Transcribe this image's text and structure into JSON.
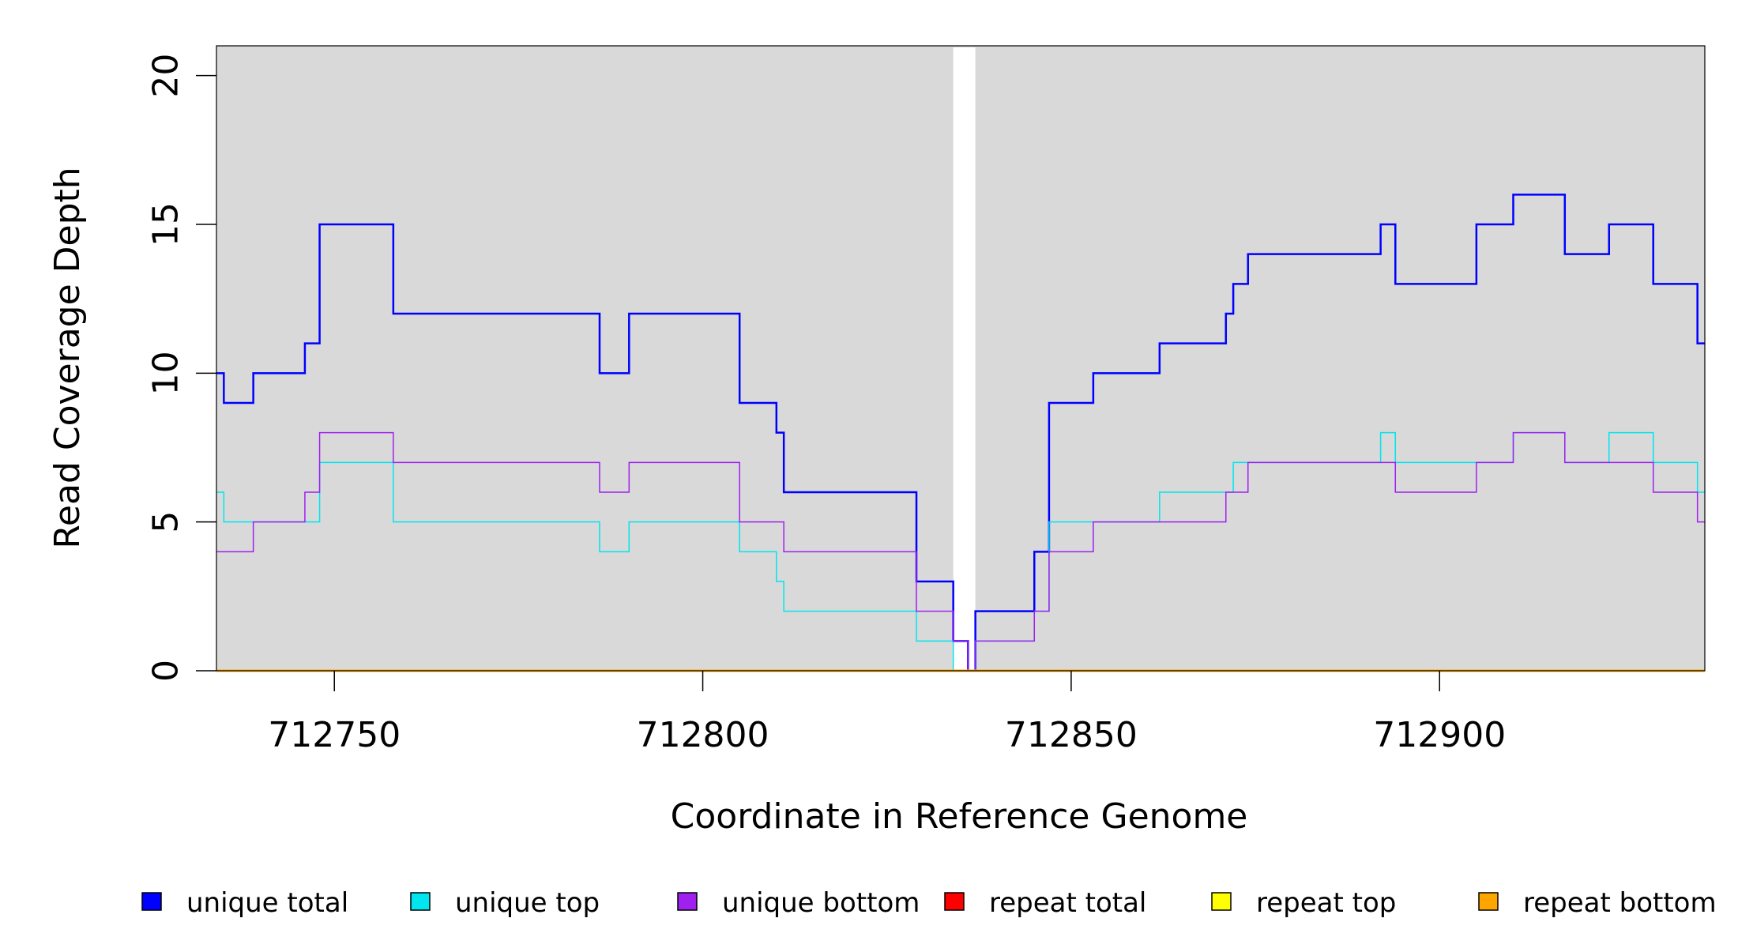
{
  "chart_data": {
    "type": "line",
    "step": true,
    "xlabel": "Coordinate in Reference Genome",
    "ylabel": "Read Coverage Depth",
    "xlim": [
      712734,
      712936
    ],
    "ylim": [
      0,
      21
    ],
    "xticks": [
      712750,
      712800,
      712850,
      712900
    ],
    "yticks": [
      0,
      5,
      10,
      15,
      20
    ],
    "background": "#d9d9d9",
    "gap": [
      712834,
      712837
    ],
    "legend_position": "bottom",
    "series": [
      {
        "name": "unique total",
        "color": "#0000ff",
        "line_width": 2.5,
        "steps": [
          [
            712734,
            10
          ],
          [
            712735,
            9
          ],
          [
            712739,
            10
          ],
          [
            712746,
            11
          ],
          [
            712748,
            15
          ],
          [
            712758,
            12
          ],
          [
            712786,
            10
          ],
          [
            712790,
            12
          ],
          [
            712805,
            9
          ],
          [
            712810,
            8
          ],
          [
            712811,
            6
          ],
          [
            712829,
            3
          ],
          [
            712834,
            1
          ],
          [
            712836,
            0
          ],
          [
            712837,
            2
          ],
          [
            712845,
            4
          ],
          [
            712847,
            9
          ],
          [
            712853,
            10
          ],
          [
            712862,
            11
          ],
          [
            712871,
            12
          ],
          [
            712872,
            13
          ],
          [
            712874,
            14
          ],
          [
            712892,
            15
          ],
          [
            712894,
            13
          ],
          [
            712905,
            15
          ],
          [
            712910,
            16
          ],
          [
            712917,
            14
          ],
          [
            712923,
            15
          ],
          [
            712929,
            13
          ],
          [
            712935,
            11
          ],
          [
            712936,
            11
          ]
        ]
      },
      {
        "name": "unique top",
        "color": "#00e5ee",
        "line_width": 1.5,
        "steps": [
          [
            712734,
            6
          ],
          [
            712735,
            5
          ],
          [
            712748,
            7
          ],
          [
            712758,
            5
          ],
          [
            712786,
            4
          ],
          [
            712790,
            5
          ],
          [
            712805,
            4
          ],
          [
            712810,
            3
          ],
          [
            712811,
            2
          ],
          [
            712829,
            1
          ],
          [
            712834,
            0
          ],
          [
            712837,
            1
          ],
          [
            712845,
            2
          ],
          [
            712847,
            5
          ],
          [
            712862,
            6
          ],
          [
            712871,
            6
          ],
          [
            712872,
            7
          ],
          [
            712892,
            8
          ],
          [
            712894,
            7
          ],
          [
            712910,
            8
          ],
          [
            712917,
            7
          ],
          [
            712923,
            8
          ],
          [
            712929,
            7
          ],
          [
            712935,
            6
          ],
          [
            712936,
            6
          ]
        ]
      },
      {
        "name": "unique bottom",
        "color": "#a020f0",
        "line_width": 1.5,
        "steps": [
          [
            712734,
            4
          ],
          [
            712739,
            5
          ],
          [
            712746,
            6
          ],
          [
            712748,
            8
          ],
          [
            712758,
            7
          ],
          [
            712786,
            6
          ],
          [
            712790,
            7
          ],
          [
            712805,
            5
          ],
          [
            712811,
            4
          ],
          [
            712829,
            2
          ],
          [
            712834,
            1
          ],
          [
            712836,
            0
          ],
          [
            712837,
            1
          ],
          [
            712845,
            2
          ],
          [
            712847,
            4
          ],
          [
            712853,
            5
          ],
          [
            712871,
            6
          ],
          [
            712874,
            7
          ],
          [
            712894,
            6
          ],
          [
            712905,
            7
          ],
          [
            712910,
            8
          ],
          [
            712917,
            7
          ],
          [
            712929,
            6
          ],
          [
            712935,
            5
          ],
          [
            712936,
            5
          ]
        ]
      },
      {
        "name": "repeat total",
        "color": "#ff0000",
        "line_width": 2,
        "steps": [
          [
            712734,
            0
          ],
          [
            712936,
            0
          ]
        ]
      },
      {
        "name": "repeat top",
        "color": "#ffff00",
        "line_width": 2,
        "steps": [
          [
            712734,
            0
          ],
          [
            712936,
            0
          ]
        ]
      },
      {
        "name": "repeat bottom",
        "color": "#ffa500",
        "line_width": 3,
        "steps": [
          [
            712734,
            0
          ],
          [
            712936,
            0
          ]
        ]
      }
    ]
  }
}
